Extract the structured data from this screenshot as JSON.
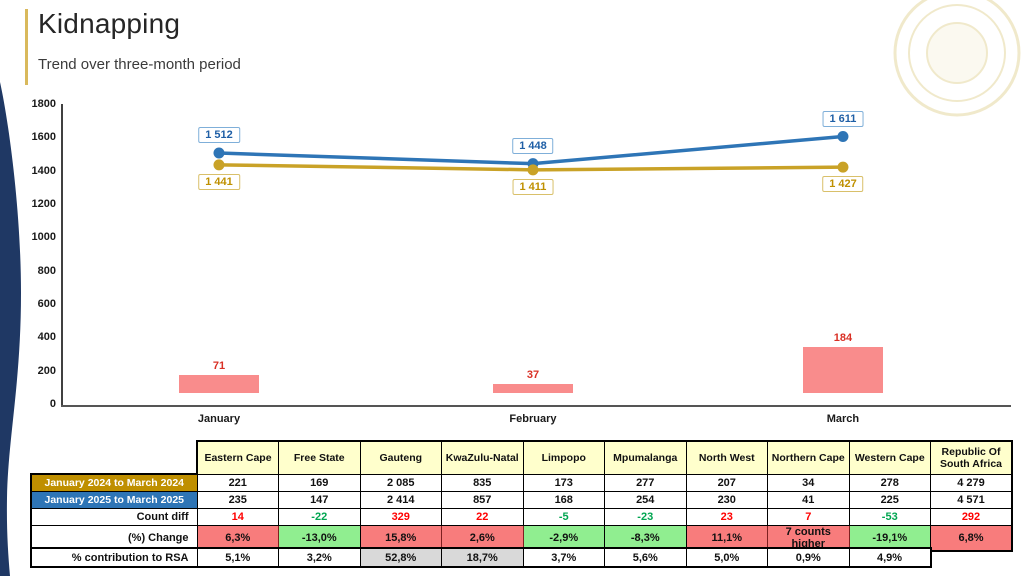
{
  "slide": {
    "title": "Kidnapping",
    "subtitle": "Trend over three-month period"
  },
  "colors": {
    "accent_gold": "#D9B95C",
    "navy_shape": "#1F3864",
    "blue_line": "#2E75B6",
    "gold_line": "#C9A227",
    "bar_fill": "#F98C8C",
    "bar_label_text": "#D93025",
    "header_bg": "#FFFFCC",
    "row_2024_bg": "#BF8F00",
    "row_2025_bg": "#2E75B6",
    "positive_text": "#FF0000",
    "negative_text": "#00A550",
    "positive_bg": "#F87C7C",
    "negative_bg": "#90EE90",
    "gray_highlight_bg": "#D9D9D9"
  },
  "chart_data": {
    "type": "line+bar",
    "title": "Kidnapping — trend over three-month period",
    "categories": [
      "January",
      "February",
      "March"
    ],
    "series": [
      {
        "name": "January 2025 to March 2025",
        "kind": "line",
        "color": "#2E75B6",
        "values": [
          1512,
          1448,
          1611
        ],
        "labels": [
          "1 512",
          "1 448",
          "1 611"
        ]
      },
      {
        "name": "January 2024 to March 2024",
        "kind": "line",
        "color": "#C9A227",
        "values": [
          1441,
          1411,
          1427
        ],
        "labels": [
          "1 441",
          "1 411",
          "1 427"
        ]
      },
      {
        "name": "Count diff",
        "kind": "bar",
        "color": "#F98C8C",
        "values": [
          71,
          37,
          184
        ],
        "labels": [
          "71",
          "37",
          "184"
        ]
      }
    ],
    "xlabel": "",
    "ylabel": "",
    "ylim": [
      0,
      1800
    ],
    "ytick_step": 200,
    "yticks": [
      0,
      200,
      400,
      600,
      800,
      1000,
      1200,
      1400,
      1600,
      1800
    ],
    "grid": false,
    "legend_position": "none"
  },
  "table": {
    "columns": [
      "Eastern Cape",
      "Free State",
      "Gauteng",
      "KwaZulu-Natal",
      "Limpopo",
      "Mpumalanga",
      "North West",
      "Northern Cape",
      "Western Cape",
      "Republic Of South Africa"
    ],
    "row_2024": {
      "label": "January 2024 to March 2024",
      "values": [
        "221",
        "169",
        "2 085",
        "835",
        "173",
        "277",
        "207",
        "34",
        "278",
        "4 279"
      ]
    },
    "row_2025": {
      "label": "January 2025 to March 2025",
      "values": [
        "235",
        "147",
        "2 414",
        "857",
        "168",
        "254",
        "230",
        "41",
        "225",
        "4 571"
      ]
    },
    "row_diff": {
      "label": "Count diff",
      "values": [
        "14",
        "-22",
        "329",
        "22",
        "-5",
        "-23",
        "23",
        "7",
        "-53",
        "292"
      ]
    },
    "row_change": {
      "label": "(%) Change",
      "values": [
        "6,3%",
        "-13,0%",
        "15,8%",
        "2,6%",
        "-2,9%",
        "-8,3%",
        "11,1%",
        "7 counts higher",
        "-19,1%",
        "6,8%"
      ]
    },
    "row_contribution": {
      "label": "% contribution to RSA",
      "values": [
        "5,1%",
        "3,2%",
        "52,8%",
        "18,7%",
        "3,7%",
        "5,6%",
        "5,0%",
        "0,9%",
        "4,9%"
      ],
      "highlight_indices": [
        2,
        3
      ]
    }
  }
}
